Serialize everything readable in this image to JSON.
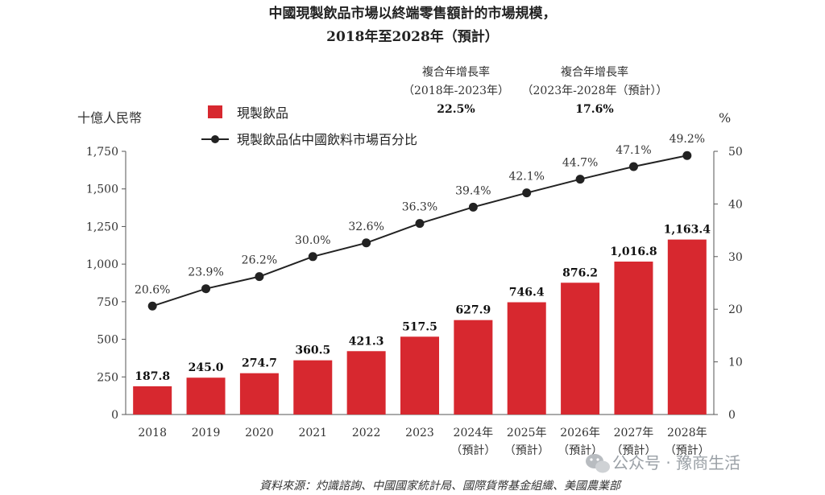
{
  "chart_data": {
    "type": "bar",
    "title": "中國現製飲品市場以終端零售額計的市場規模，",
    "subtitle": "2018年至2028年（預計）",
    "categories": [
      [
        "2018"
      ],
      [
        "2019"
      ],
      [
        "2020"
      ],
      [
        "2021"
      ],
      [
        "2022"
      ],
      [
        "2023"
      ],
      [
        "2024年",
        "（預計）"
      ],
      [
        "2025年",
        "（預計）"
      ],
      [
        "2026年",
        "（預計）"
      ],
      [
        "2027年",
        "（預計）"
      ],
      [
        "2028年",
        "（預計）"
      ]
    ],
    "series": [
      {
        "name": "現製飲品",
        "type": "bar",
        "axis": "left",
        "color": "#d7282f",
        "values": [
          187.8,
          245.0,
          274.7,
          360.5,
          421.3,
          517.5,
          627.9,
          746.4,
          876.2,
          1016.8,
          1163.4
        ],
        "labels": [
          "187.8",
          "245.0",
          "274.7",
          "360.5",
          "421.3",
          "517.5",
          "627.9",
          "746.4",
          "876.2",
          "1,016.8",
          "1,163.4"
        ]
      },
      {
        "name": "現製飲品佔中國飲料市場百分比",
        "type": "line",
        "axis": "right",
        "color": "#222222",
        "values": [
          20.6,
          23.9,
          26.2,
          30.0,
          32.6,
          36.3,
          39.4,
          42.1,
          44.7,
          47.1,
          49.2
        ],
        "labels": [
          "20.6%",
          "23.9%",
          "26.2%",
          "30.0%",
          "32.6%",
          "36.3%",
          "39.4%",
          "42.1%",
          "44.7%",
          "47.1%",
          "49.2%"
        ]
      }
    ],
    "left_axis": {
      "label": "十億人民幣",
      "ylim": [
        0,
        1750
      ],
      "ticks": [
        0,
        250,
        500,
        750,
        1000,
        1250,
        1500,
        1750
      ],
      "tick_labels": [
        "0",
        "250",
        "500",
        "750",
        "1,000",
        "1,250",
        "1,500",
        "1,750"
      ]
    },
    "right_axis": {
      "label": "%",
      "ylim": [
        0,
        50
      ],
      "ticks": [
        0,
        10,
        20,
        30,
        40,
        50
      ],
      "tick_labels": [
        "0",
        "10",
        "20",
        "30",
        "40",
        "50"
      ]
    },
    "cagr": [
      {
        "label": "複合年增長率",
        "period": "（2018年-2023年）",
        "value": "22.5%"
      },
      {
        "label": "複合年增長率",
        "period": "（2023年-2028年（預計））",
        "value": "17.6%"
      }
    ],
    "legend_position": "top-left",
    "grid": false,
    "source": "資料來源：灼識諮詢、中國國家統計局、國際貨幣基金組織、美國農業部"
  },
  "watermark": {
    "text": "公众号 · 豫商生活",
    "icon": "wechat-icon"
  }
}
